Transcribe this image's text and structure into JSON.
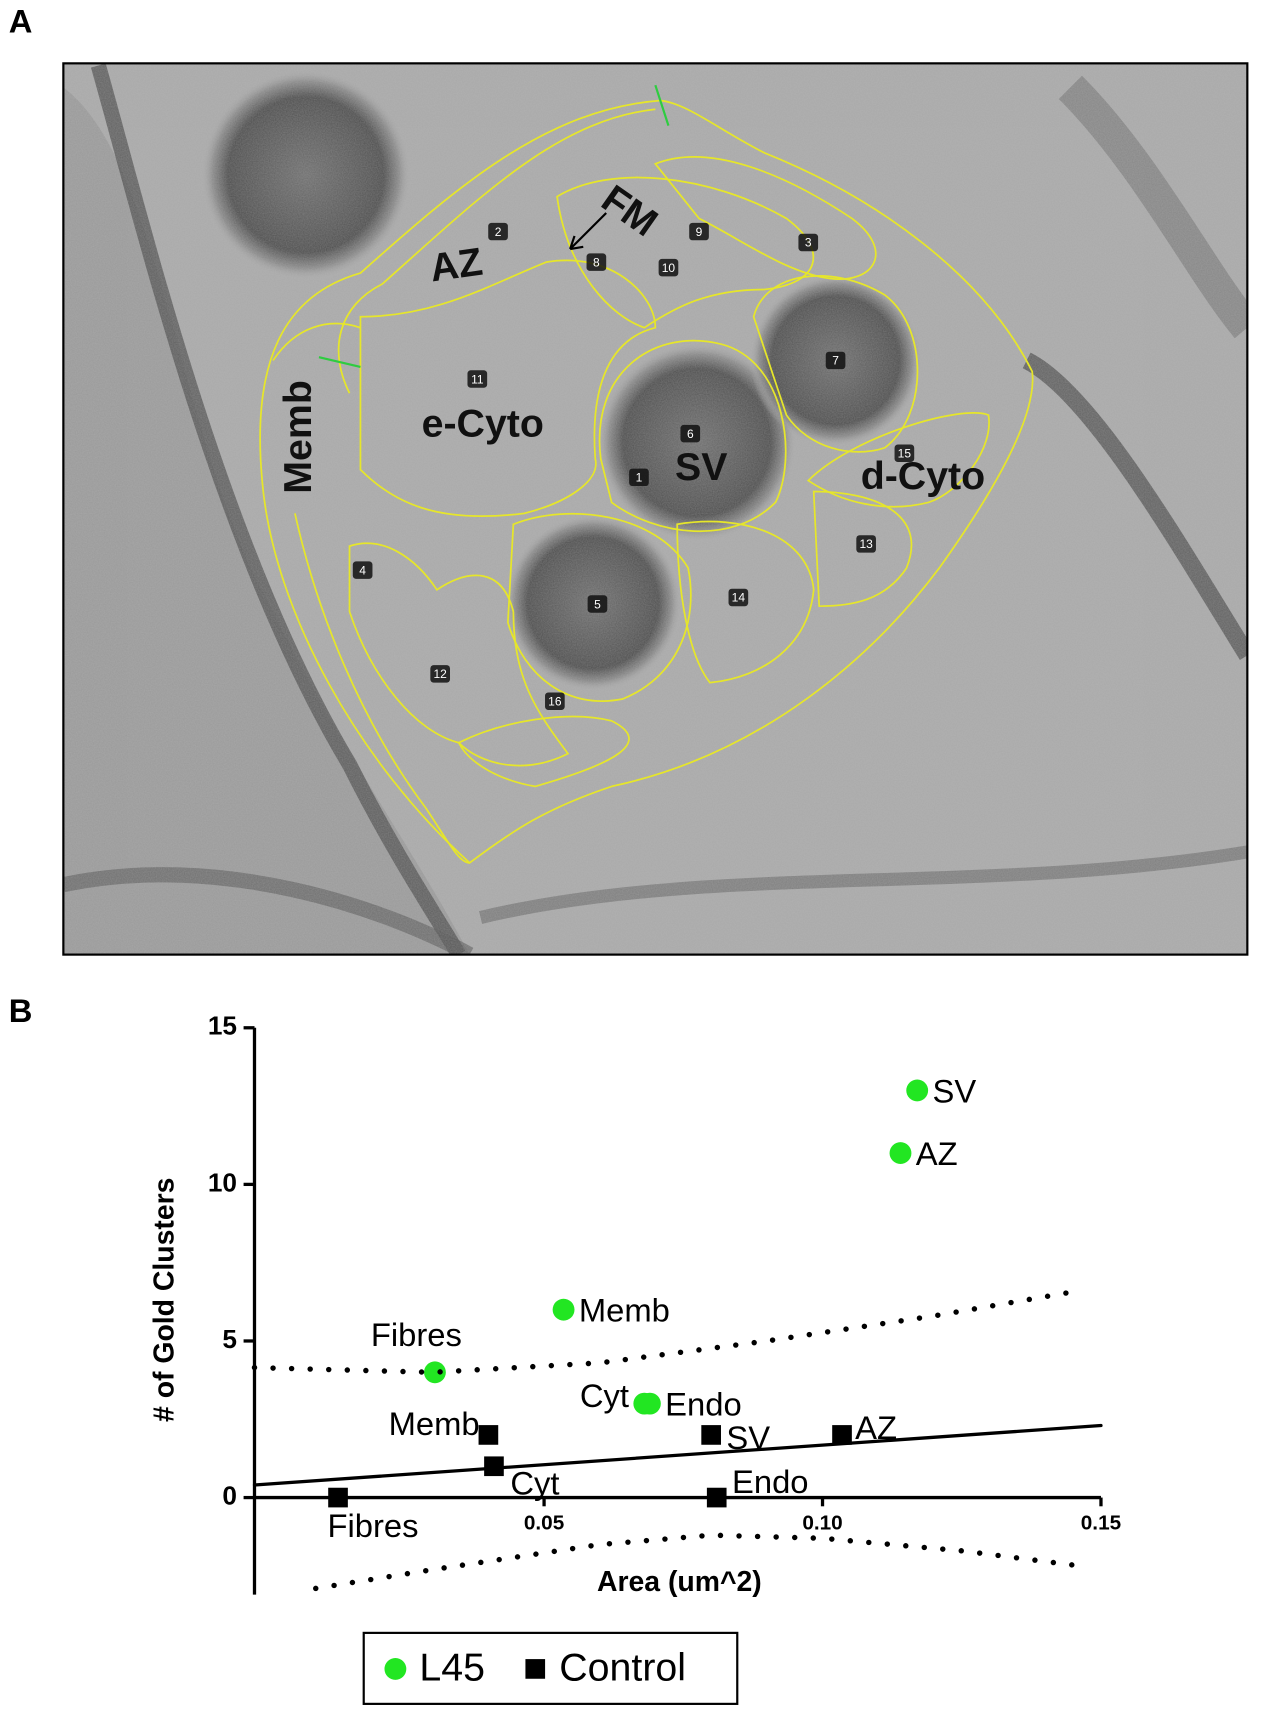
{
  "panel_a": {
    "letter": "A",
    "region_labels": [
      "AZ",
      "FM",
      "Memb",
      "e-Cyto",
      "SV",
      "d-Cyto"
    ],
    "region_numbers": [
      1,
      2,
      3,
      4,
      5,
      6,
      7,
      8,
      9,
      10,
      11,
      12,
      13,
      14,
      15,
      16
    ]
  },
  "panel_b": {
    "letter": "B"
  },
  "chart_data": {
    "type": "scatter",
    "xlabel": "Area (um^2)",
    "ylabel": "# of Gold Clusters",
    "xlim": [
      -0.002,
      0.15
    ],
    "ylim": [
      -3.1,
      15
    ],
    "xticks": [
      0.05,
      {
        "value": 0.1,
        "label": "0.10"
      },
      0.15
    ],
    "yticks": [
      0,
      5,
      10,
      15
    ],
    "legend": "bottom",
    "series": [
      {
        "name": "L45",
        "color": "#22e622",
        "marker": "circle",
        "x": [
          0.0304,
          0.0535,
          0.068,
          0.069,
          0.114,
          0.117
        ],
        "y": [
          4,
          6,
          3,
          3,
          11,
          13
        ],
        "labels": [
          "Fibres",
          "Memb",
          "Cyt",
          "Endo",
          "AZ",
          "SV"
        ]
      },
      {
        "name": "Control",
        "color": "#000000",
        "marker": "square",
        "x": [
          0.013,
          0.04,
          0.041,
          0.08,
          0.081,
          0.1035
        ],
        "y": [
          0,
          2,
          1,
          2,
          0,
          2
        ],
        "labels": [
          "Fibres",
          "Memb",
          "Cyt",
          "SV",
          "Endo",
          "AZ"
        ]
      },
      {
        "style": "solid",
        "color": "#000000",
        "x": [
          -0.002,
          0.15
        ],
        "y": [
          0.4,
          2.3
        ]
      },
      {
        "style": "dotted",
        "color": "#000000",
        "x": [
          -0.002,
          0.03,
          0.06,
          0.09,
          0.12,
          0.146
        ],
        "y": [
          4.15,
          4.0,
          4.3,
          5.0,
          5.8,
          6.6
        ]
      },
      {
        "style": "dotted",
        "color": "#000000",
        "x": [
          0.009,
          0.03,
          0.06,
          0.08,
          0.1,
          0.125,
          0.147
        ],
        "y": [
          -2.9,
          -2.3,
          -1.5,
          -1.2,
          -1.3,
          -1.7,
          -2.2
        ]
      }
    ]
  }
}
